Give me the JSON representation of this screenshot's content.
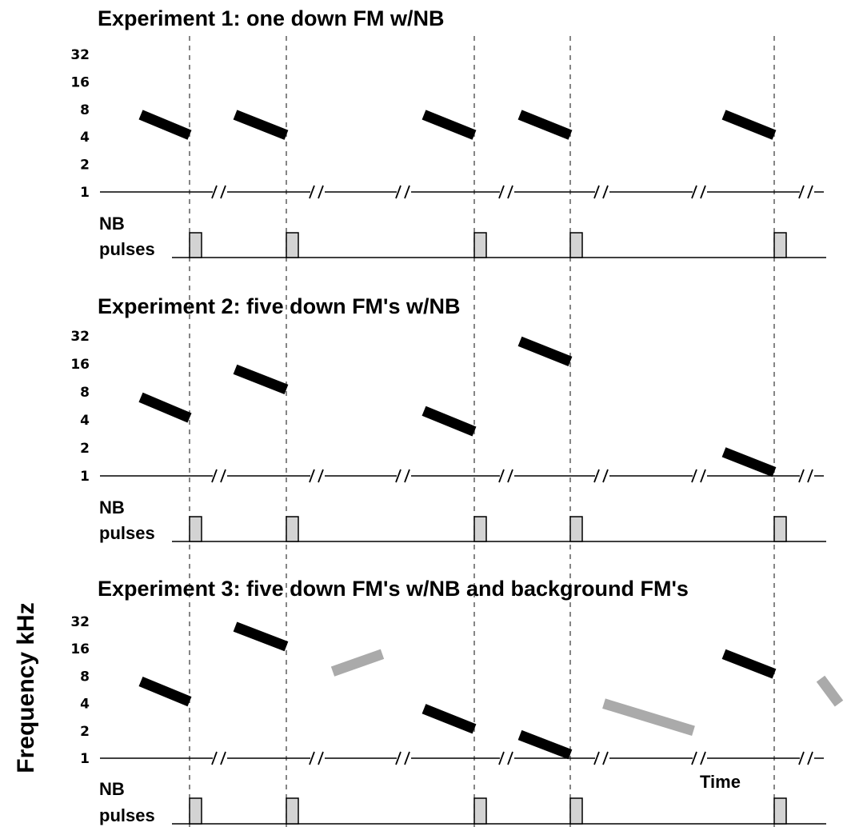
{
  "y_axis_label": "Frequency kHz",
  "time_label": "Time",
  "frequency_ticks": [
    "1",
    "2",
    "4",
    "8",
    "16",
    "32"
  ],
  "nb_label_line1": "NB",
  "nb_label_line2": "pulses",
  "colors": {
    "fm_sweep": "#000000",
    "background_fm": "#aaaaaa",
    "nb_pulse": "#d3d3d3"
  },
  "pulse_slot_count": 5,
  "experiments": [
    {
      "title": "Experiment 1: one down FM w/NB",
      "fm_sweeps": [
        {
          "slot": 1,
          "f_start_khz": 7,
          "f_end_khz": 4.2
        },
        {
          "slot": 2,
          "f_start_khz": 7,
          "f_end_khz": 4.2
        },
        {
          "slot": 3,
          "f_start_khz": 7,
          "f_end_khz": 4.2
        },
        {
          "slot": 4,
          "f_start_khz": 7,
          "f_end_khz": 4.2
        },
        {
          "slot": 5,
          "f_start_khz": 7,
          "f_end_khz": 4.2
        }
      ],
      "background_fms": []
    },
    {
      "title": "Experiment 2:  five down FM's w/NB",
      "fm_sweeps": [
        {
          "slot": 1,
          "f_start_khz": 7,
          "f_end_khz": 4.2
        },
        {
          "slot": 2,
          "f_start_khz": 14,
          "f_end_khz": 8.5
        },
        {
          "slot": 3,
          "f_start_khz": 5,
          "f_end_khz": 3
        },
        {
          "slot": 4,
          "f_start_khz": 28,
          "f_end_khz": 17
        },
        {
          "slot": 5,
          "f_start_khz": 1.8,
          "f_end_khz": 1.1
        }
      ],
      "background_fms": []
    },
    {
      "title": "Experiment 3:  five down FM's w/NB and background FM's",
      "fm_sweeps": [
        {
          "slot": 1,
          "f_start_khz": 7,
          "f_end_khz": 4.2
        },
        {
          "slot": 2,
          "f_start_khz": 28,
          "f_end_khz": 17
        },
        {
          "slot": 3,
          "f_start_khz": 3.5,
          "f_end_khz": 2.1
        },
        {
          "slot": 4,
          "f_start_khz": 1.8,
          "f_end_khz": 1.1
        },
        {
          "slot": 5,
          "f_start_khz": 14,
          "f_end_khz": 8.5
        }
      ],
      "background_fms": [
        {
          "after_slot": 2,
          "f_start_khz": 9,
          "f_end_khz": 14,
          "direction": "up"
        },
        {
          "after_slot": 4,
          "f_start_khz": 4,
          "f_end_khz": 2,
          "direction": "down"
        },
        {
          "after_slot": 5,
          "f_start_khz": 7.5,
          "f_end_khz": 4,
          "direction": "down"
        }
      ]
    }
  ]
}
